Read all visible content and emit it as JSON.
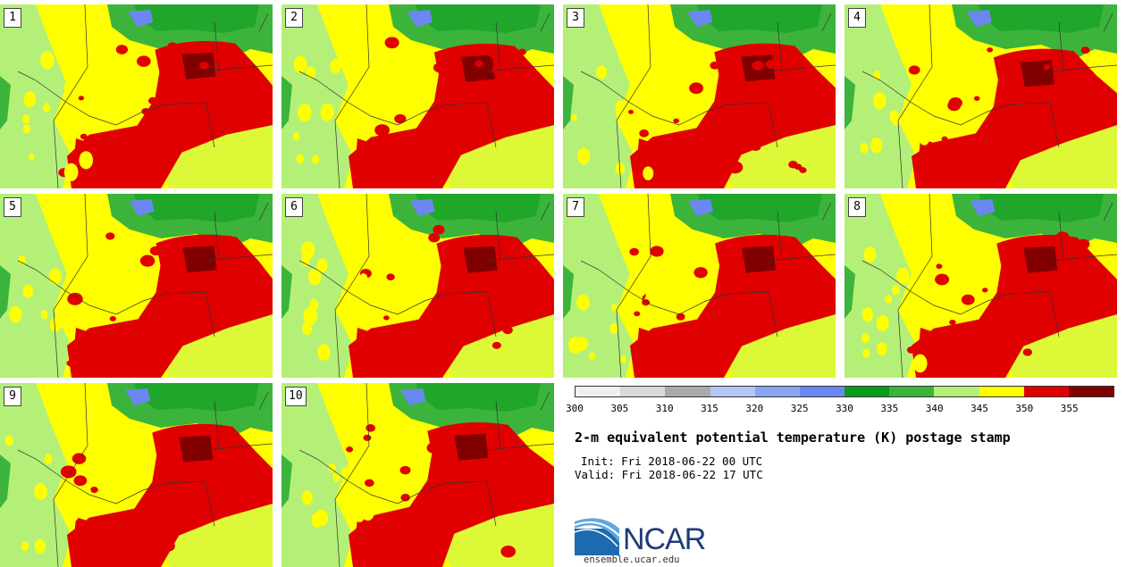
{
  "figure": {
    "title": "2-m equivalent potential temperature (K) postage stamp",
    "init": "Init: Fri 2018-06-22 00 UTC",
    "valid": "Valid: Fri 2018-06-22 17 UTC",
    "organization": "NCAR",
    "url": "ensemble.ucar.edu"
  },
  "members": [
    "1",
    "2",
    "3",
    "4",
    "5",
    "6",
    "7",
    "8",
    "9",
    "10"
  ],
  "colorbar": {
    "ticks": [
      "300",
      "305",
      "310",
      "315",
      "320",
      "325",
      "330",
      "335",
      "340",
      "345",
      "350",
      "355"
    ],
    "colors": [
      "#f0f0f0",
      "#d9d9d9",
      "#aaaaaa",
      "#b4c6f5",
      "#8aa4f5",
      "#6c86f2",
      "#0a9a1c",
      "#3cb43c",
      "#b4f078",
      "#ffff00",
      "#e00000",
      "#800000"
    ]
  },
  "map_colors": {
    "land_yellow": "#ffff00",
    "light_green": "#b4f078",
    "green": "#3cb43c",
    "dark_green": "#0a9a1c",
    "blue": "#6c86f2",
    "red": "#e00000",
    "dark_red": "#800000",
    "boundary": "#333333"
  }
}
